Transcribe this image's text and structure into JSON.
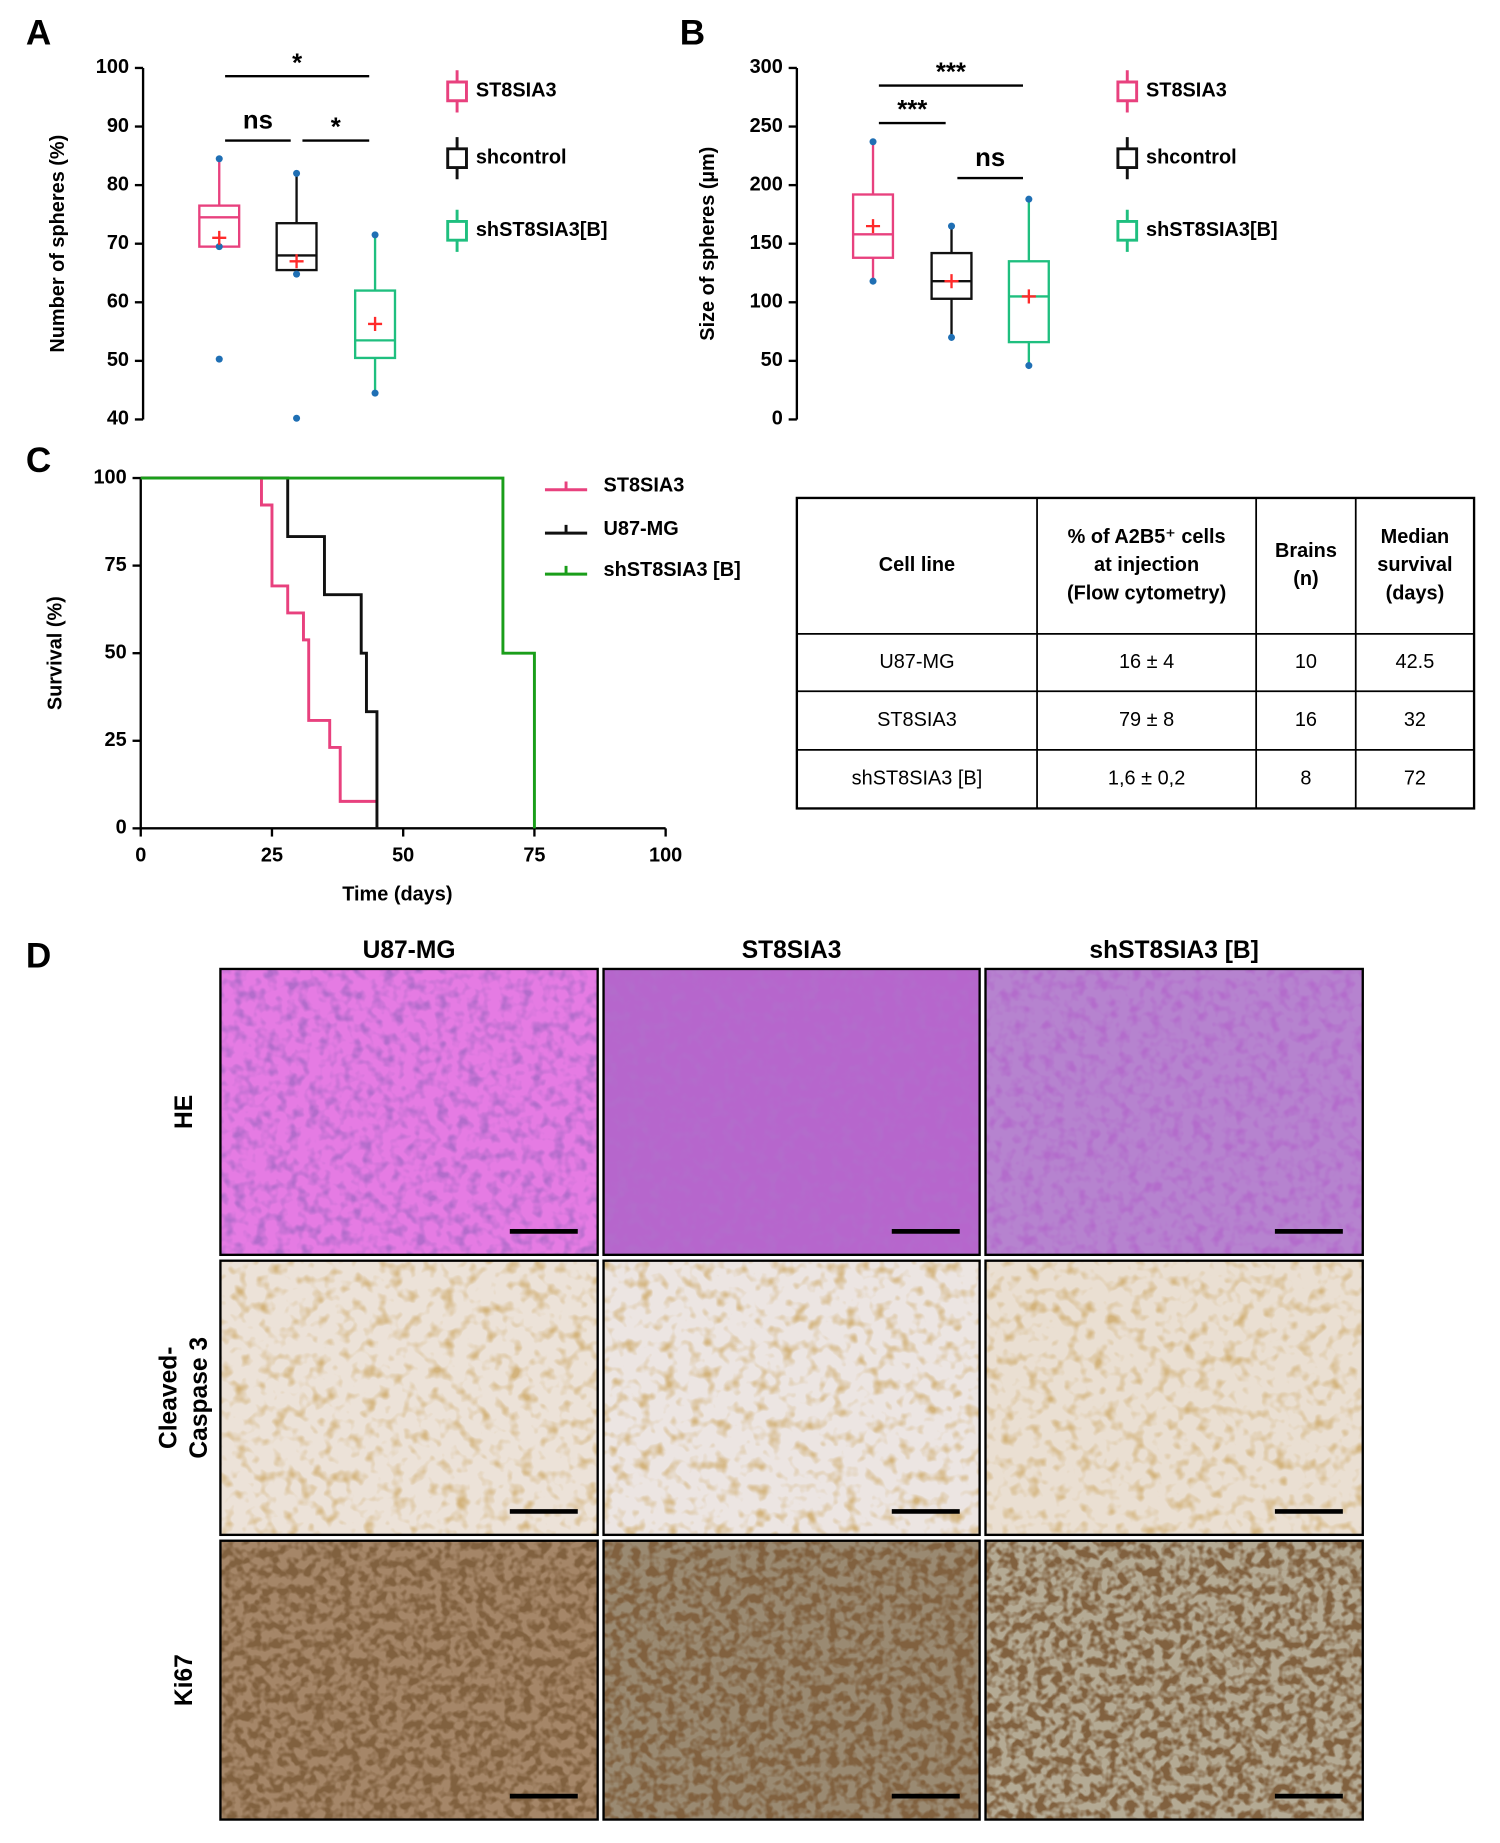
{
  "chart_data": [
    {
      "type": "box",
      "panel": "A",
      "ylabel": "Number of spheres (%)",
      "ylim": [
        40,
        100
      ],
      "yticks": [
        40,
        50,
        60,
        70,
        80,
        90,
        100
      ],
      "annotations": [
        "*",
        "ns",
        "*"
      ],
      "series": [
        {
          "name": "ST8SIA3",
          "color": "#e8417e",
          "whisker_low": 69.5,
          "q1": 69.5,
          "median": 74.5,
          "q3": 76.5,
          "whisker_high": 84.5,
          "mean": 71,
          "outliers": [
            50.3
          ]
        },
        {
          "name": "shcontrol",
          "color": "#111111",
          "whisker_low": 64.8,
          "q1": 65.5,
          "median": 68,
          "q3": 73.5,
          "whisker_high": 82,
          "mean": 67,
          "outliers": [
            40.2
          ]
        },
        {
          "name": "shST8SIA3[B]",
          "color": "#1fbf7f",
          "whisker_low": 44.5,
          "q1": 50.5,
          "median": 53.5,
          "q3": 62,
          "whisker_high": 71.5,
          "mean": 56.3,
          "outliers": []
        }
      ]
    },
    {
      "type": "box",
      "panel": "B",
      "ylabel": "Size of spheres (µm)",
      "ylim": [
        0,
        300
      ],
      "yticks": [
        0,
        50,
        100,
        150,
        200,
        250,
        300
      ],
      "annotations": [
        "***",
        "***",
        "ns"
      ],
      "series": [
        {
          "name": "ST8SIA3",
          "color": "#e8417e",
          "whisker_low": 118,
          "q1": 138,
          "median": 158,
          "q3": 192,
          "whisker_high": 237,
          "mean": 165,
          "outliers": []
        },
        {
          "name": "shcontrol",
          "color": "#111111",
          "whisker_low": 70,
          "q1": 103,
          "median": 118,
          "q3": 142,
          "whisker_high": 165,
          "mean": 118,
          "outliers": []
        },
        {
          "name": "shST8SIA3[B]",
          "color": "#1fbf7f",
          "whisker_low": 46,
          "q1": 66,
          "median": 105,
          "q3": 135,
          "whisker_high": 188,
          "mean": 105,
          "outliers": []
        }
      ]
    },
    {
      "type": "step",
      "panel": "C",
      "xlabel": "Time (days)",
      "ylabel": "Survival (%)",
      "xlim": [
        0,
        100
      ],
      "xticks": [
        0,
        25,
        50,
        75,
        100
      ],
      "ylim": [
        0,
        100
      ],
      "yticks": [
        0,
        25,
        50,
        75,
        100
      ],
      "series": [
        {
          "name": "ST8SIA3",
          "color": "#e8417e",
          "x": [
            0,
            23,
            25,
            28,
            31,
            32,
            36,
            38,
            45
          ],
          "y": [
            100,
            92.3,
            69.2,
            61.5,
            53.8,
            30.8,
            23.1,
            7.7,
            7.7
          ]
        },
        {
          "name": "U87-MG",
          "color": "#111111",
          "x": [
            0,
            28,
            35,
            42,
            43,
            45
          ],
          "y": [
            100,
            83.3,
            66.7,
            50,
            33.3,
            0
          ]
        },
        {
          "name": "shST8SIA3 [B]",
          "color": "#1a9e1a",
          "x": [
            0,
            69,
            75
          ],
          "y": [
            100,
            50,
            0
          ]
        }
      ]
    }
  ],
  "table": {
    "header": [
      [
        "Cell line"
      ],
      [
        "% of A2B5⁺ cells",
        "at injection",
        "(Flow cytometry)"
      ],
      [
        "Brains",
        "(n)"
      ],
      [
        "Median",
        "survival",
        "(days)"
      ]
    ],
    "rows": [
      [
        "U87-MG",
        "16 ± 4",
        "10",
        "42.5"
      ],
      [
        "ST8SIA3",
        "79 ± 8",
        "16",
        "32"
      ],
      [
        "shST8SIA3 [B]",
        "1,6 ± 0,2",
        "8",
        "72"
      ]
    ]
  },
  "figure_d": {
    "panel": "D",
    "columns": [
      "U87-MG",
      "ST8SIA3",
      "shST8SIA3 [B]"
    ],
    "rows": [
      [
        "HE"
      ],
      [
        "Cleaved-",
        "Caspase 3"
      ],
      [
        "Ki67"
      ]
    ]
  }
}
